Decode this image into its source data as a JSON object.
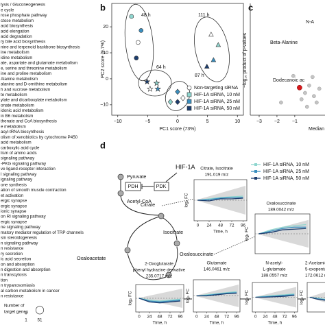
{
  "pathway_list": {
    "items": [
      "lysis / Gluconeogenesis",
      "e cycle",
      "rose phosphate pathway",
      "ctose metabolism",
      "acid biosynthesis",
      "acid elongation",
      "acid degradation",
      "ry bile acid biosynthesis",
      "nine and terpenoid backbone biosynthesis",
      "ine metabolism",
      "idine metabolism",
      "ate, aspartate and glutamate metabolism",
      "e, serine and threonine metabolism",
      "ine and proline metabolism",
      "Alanine metabolism",
      "alanine and D-ornithine metabolism",
      "h and sucrose metabolism",
      "te metabolism",
      "ylate and dicarboxylate metabolism",
      "onate metabolism",
      "idonic acid metabolism",
      "in B6 metabolism",
      "thenate and CoA biosynthesis",
      "e metabolism",
      "acyl-tRNA biosynthesis",
      "olism of xenobiotics by cytochrome P450",
      "acid metabolism",
      "carboxylic acid cycle",
      "lism of amino acids",
      "signaling pathway",
      "-PKG signaling pathway",
      "ve ligand-receptor interaction",
      "l signaling pathway",
      "ignaling pathway",
      "one synthesis",
      "ation of smooth muscle contraction",
      "et activation",
      "ergic synapse",
      "ergic synapse",
      "ionic synapse",
      "on RI signaling pathway",
      "ergic synapse",
      "ne signaling pathway",
      "matory mediator regulation of TRP channels",
      "sin steroidogenesis",
      "n signaling pathway",
      "n resistance",
      "ry secretion",
      "ic acid secretion",
      "on and absorption",
      "n digestion and absorption",
      "n transcytosis",
      "tion",
      "n trypanosomiasis",
      "al carbon metabolism in cancer",
      "n resistance"
    ],
    "size_legend": {
      "title": [
        "Number of",
        "target genes"
      ],
      "min": 1,
      "max": 51
    }
  },
  "chart_data": [
    {
      "type": "scatter",
      "panel": "b",
      "xlabel": "PC1 score (73%)",
      "ylabel": "PC2 score (9.7%)",
      "xlim": [
        -11,
        11
      ],
      "ylim": [
        -14,
        29
      ],
      "xticks": [
        {
          "value": -10,
          "label": "−10"
        },
        {
          "value": -5,
          "label": "−5"
        },
        0,
        5,
        10
      ],
      "yticks": [
        {
          "value": -10,
          "label": "−10"
        },
        0,
        10,
        20
      ],
      "group_labels": [
        "48 h",
        "111 h",
        "64 h",
        "87 h"
      ],
      "markers": [
        "circle",
        "triangle",
        "star",
        "diamond"
      ],
      "series": [
        {
          "name": "Non-targeting siRNA",
          "color": "#ffffff",
          "legend_marker": "circle",
          "x": [
            -6.6,
            5.6,
            -4.6,
            0.9
          ],
          "values": [
            14,
            17,
            -3.9,
            -7.4
          ]
        },
        {
          "name": "HIF-1A siRNA, 10 nM",
          "color": "#8fd6cf",
          "legend_marker": "square",
          "x": [
            -7.7,
            6.8,
            -3.5,
            -1.2
          ],
          "values": [
            24,
            13,
            -1.7,
            -8.9
          ]
        },
        {
          "name": "HIF-1A siRNA, 25 nM",
          "color": "#3b8fbf",
          "legend_marker": "square",
          "x": [
            -6.1,
            6.0,
            -3.3,
            0.0
          ],
          "values": [
            18.6,
            7.2,
            -3.9,
            -5
          ]
        },
        {
          "name": "HIF-1A siRNA, 50 nM",
          "color": "#1c3d6e",
          "legend_marker": "square",
          "x": [
            -6.9,
            4.9,
            -5.1,
            0.0
          ],
          "values": [
            8,
            4.7,
            -1.1,
            -8.9
          ]
        }
      ]
    },
    {
      "type": "scatter",
      "panel": "c",
      "xlabel": "Median",
      "ylabel": "−log₁₀ product of p-values",
      "xlim": [
        -3.5,
        0.7
      ],
      "ylim": [
        0,
        10
      ],
      "xticks": [
        {
          "value": -3,
          "label": "−3"
        },
        {
          "value": -2,
          "label": "−2"
        },
        {
          "value": -1,
          "label": "−1"
        }
      ],
      "annotations": [
        "N-A",
        "Beta-Alanine",
        "Dodecanoic ac"
      ],
      "series": [
        {
          "color": "#c4c4c4",
          "x": [
            -1.08,
            -0.19,
            -0.42,
            0.08,
            0.23,
            -0.31,
            0.38,
            -1.77,
            0.0,
            -0.62
          ],
          "values": [
            3.5,
            2.6,
            1.9,
            1.6,
            1.0,
            0.6,
            2.3,
            1.0,
            3.4,
            1.3
          ]
        },
        {
          "color": "#d7191c",
          "x": [
            -0.73
          ],
          "values": [
            2.4
          ]
        }
      ]
    },
    {
      "type": "line",
      "title": [
        "Citrate, Isocitrate",
        "191.019 m/z"
      ],
      "x": [
        0,
        24,
        48,
        72,
        96
      ],
      "xlim": [
        -8,
        104
      ],
      "ylim": [
        -1.5,
        1.5
      ],
      "xticks": [
        0,
        24,
        48,
        72,
        96
      ],
      "xlabel": "Time, h",
      "ylabel": "log₂ FC",
      "series": [
        {
          "color": "#8fd6cf",
          "values": [
            0,
            0.1,
            0.2,
            0.25,
            0.3
          ]
        },
        {
          "color": "#3b8fbf",
          "values": [
            0,
            0.05,
            0.15,
            0.2,
            0.2
          ]
        },
        {
          "color": "#1c3d6e",
          "values": [
            0,
            -0.05,
            0.1,
            0.1,
            0.15
          ]
        }
      ]
    },
    {
      "type": "line",
      "title": [
        "Oxalosuccinate",
        "189.0042 m/z"
      ],
      "x": [
        0,
        24,
        48,
        72,
        96
      ],
      "xlim": [
        -8,
        104
      ],
      "ylim": [
        -1.5,
        1.5
      ],
      "ylabel": "log₂ FC",
      "series": [
        {
          "color": "#8fd6cf",
          "values": [
            0,
            0.3,
            0.5,
            0.6,
            0.7
          ]
        },
        {
          "color": "#3b8fbf",
          "values": [
            0,
            0.2,
            0.4,
            0.5,
            0.5
          ]
        },
        {
          "color": "#1c3d6e",
          "values": [
            0,
            0.1,
            0.3,
            0.35,
            0.4
          ]
        }
      ]
    },
    {
      "type": "line",
      "title": [
        "2-Oxoglutarate",
        "phenyl hydrazine derivative",
        "235.0717 m/z"
      ],
      "x": [
        0,
        24,
        48,
        72,
        96
      ],
      "xlim": [
        -8,
        104
      ],
      "ylim": [
        -1.5,
        1.5
      ],
      "xticks": [
        0,
        24,
        48,
        72,
        96
      ],
      "xlabel": "Time, h",
      "ylabel": "log₂ FC",
      "series": [
        {
          "color": "#8fd6cf",
          "values": [
            0,
            -0.2,
            -0.3,
            -0.2,
            -0.1
          ]
        },
        {
          "color": "#3b8fbf",
          "values": [
            0,
            -0.3,
            -0.4,
            -0.3,
            -0.2
          ]
        },
        {
          "color": "#1c3d6e",
          "values": [
            0,
            -0.4,
            -0.5,
            -0.4,
            -0.3
          ]
        }
      ]
    },
    {
      "type": "line",
      "title": [
        "Glutamate",
        "146.0461 m/z"
      ],
      "x": [
        0,
        24,
        48,
        72,
        96
      ],
      "xlim": [
        -8,
        104
      ],
      "ylim": [
        -1.5,
        1.5
      ],
      "xticks": [
        0,
        24,
        48,
        72,
        96
      ],
      "xlabel": "Time, h",
      "ylabel": "log₂ FC",
      "series": [
        {
          "color": "#8fd6cf",
          "values": [
            0,
            0.1,
            0.2,
            0.3,
            0.4
          ]
        },
        {
          "color": "#3b8fbf",
          "values": [
            0,
            0.05,
            0.15,
            0.25,
            0.3
          ]
        },
        {
          "color": "#1c3d6e",
          "values": [
            0,
            0,
            0.1,
            0.2,
            0.25
          ]
        }
      ]
    },
    {
      "type": "line",
      "title": [
        "N-acetyl-",
        "L-glutamate",
        "188.0557 m/z"
      ],
      "x": [
        0,
        24,
        48,
        72,
        96
      ],
      "xlim": [
        -8,
        104
      ],
      "ylim": [
        -1.5,
        1.5
      ],
      "xticks": [
        0,
        24,
        48,
        72,
        96
      ],
      "xlabel": "Time, h",
      "ylabel": "log₂ FC",
      "series": [
        {
          "color": "#8fd6cf",
          "values": [
            0,
            0.1,
            0.2,
            0.25,
            0.35
          ]
        },
        {
          "color": "#3b8fbf",
          "values": [
            0,
            0.05,
            0.1,
            0.2,
            0.25
          ]
        },
        {
          "color": "#1c3d6e",
          "values": [
            0,
            0,
            0.05,
            0.1,
            0.2
          ]
        }
      ]
    },
    {
      "type": "line",
      "title": [
        "2-Acetamido-",
        "5-oxopentan",
        "172.0612 m/z"
      ],
      "x": [
        0,
        24,
        48,
        72,
        96
      ],
      "xlim": [
        -8,
        104
      ],
      "ylim": [
        -1.5,
        1.5
      ],
      "ylabel": "log₂ FC",
      "series": [
        {
          "color": "#8fd6cf",
          "values": [
            0,
            -0.1,
            -0.2,
            -0.15,
            -0.1
          ]
        },
        {
          "color": "#3b8fbf",
          "values": [
            0,
            -0.15,
            -0.25,
            -0.2,
            -0.15
          ]
        },
        {
          "color": "#1c3d6e",
          "values": [
            0,
            -0.2,
            -0.3,
            -0.25,
            -0.2
          ]
        }
      ]
    }
  ],
  "diagram": {
    "panel": "d",
    "nodes": {
      "hif": "HIF-1A",
      "pdh": "PDH",
      "pdk": "PDK",
      "pyruvate": "Pyruvate",
      "acetyl": "Acetyl-CoA",
      "citrate": "Citrate",
      "isocitrate": "Isocitrate",
      "oxaloacetate": "Oxaloacetate",
      "oxalosuccinate": "Oxalosuccinate"
    },
    "legend": [
      {
        "name": "HIF-1A siRNA, 10 nM",
        "color": "#8fd6cf"
      },
      {
        "name": "HIF-1A siRNA, 25 nM",
        "color": "#3b8fbf"
      },
      {
        "name": "HIF-1A siRNA, 50 nM",
        "color": "#1c3d6e"
      }
    ]
  }
}
